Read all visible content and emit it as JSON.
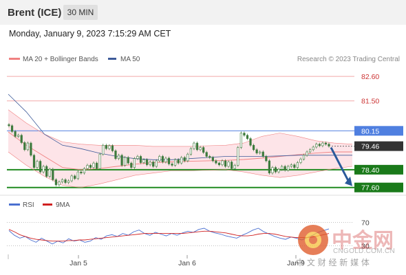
{
  "header": {
    "instrument": "Brent (ICE)",
    "timeframe": "30 MIN"
  },
  "datetime": "Monday, January 9, 2023 7:15:29 AM CET",
  "legend": {
    "bb_label": "MA 20 + Bollinger Bands",
    "ma50_label": "MA 50",
    "source": "Research © 2023 Trading Central",
    "rsi_label": "RSI",
    "rsi_ma_label": "9MA"
  },
  "colors": {
    "bollinger": "#f08080",
    "bollinger_fill": "#fde4e8",
    "ma50": "#3d5a99",
    "candle": "#3d7a3d",
    "support": "#1f8a1f",
    "resistance": "#4f7fe0",
    "pivot": "#333333",
    "arrow": "#2a5a9a",
    "rsi": "#4a6fd0",
    "rsi_ma": "#d02020"
  },
  "watermark": {
    "cn_title": "中金网",
    "url": "CNGOLD.COM.CN",
    "cn_sub": "中 文 财 经 新 媒 体"
  },
  "chart_data": [
    {
      "type": "line",
      "title": "Brent (ICE) 30 MIN",
      "x_tick_labels": [
        "Jan 5",
        "Jan 6",
        "Jan 9"
      ],
      "ylim": [
        77.25,
        83.1
      ],
      "series": [
        {
          "name": "Price",
          "values": [
            80.38,
            80.12,
            79.9,
            79.95,
            79.62,
            79.3,
            79.6,
            79.05,
            78.5,
            78.78,
            78.3,
            78.55,
            78.1,
            78.42,
            77.95,
            77.72,
            77.85,
            77.95,
            77.82,
            77.9,
            78.12,
            78.0,
            78.3,
            78.25,
            78.45,
            78.6,
            78.5,
            78.7,
            78.45,
            79.1,
            79.5,
            79.35,
            79.48,
            79.25,
            78.9,
            79.05,
            78.6,
            78.95,
            78.7,
            78.5,
            78.9,
            79.0,
            78.72,
            78.85,
            78.62,
            78.75,
            78.55,
            78.8,
            79.0,
            78.75,
            78.92,
            78.66,
            78.6,
            78.85,
            78.7,
            78.95,
            78.8,
            79.1,
            79.35,
            79.6,
            79.3,
            79.4,
            79.18,
            79.0,
            78.95,
            78.8,
            78.7,
            78.62,
            78.8,
            78.55,
            78.75,
            78.45,
            78.6,
            79.4,
            80.05,
            79.95,
            79.8,
            79.5,
            79.3,
            79.15,
            79.2,
            79.0,
            78.8,
            78.25,
            78.5,
            78.3,
            78.42,
            78.55,
            78.38,
            78.55,
            78.62,
            78.5,
            78.72,
            78.88,
            79.05,
            79.2,
            79.3,
            79.42,
            79.55,
            79.48,
            79.6,
            79.55,
            79.46
          ]
        },
        {
          "name": "MA 20",
          "values": [
            80.1,
            79.5,
            79.0,
            78.5,
            78.4,
            78.45,
            78.55,
            78.65,
            78.72,
            78.75,
            78.78,
            78.8,
            78.82,
            78.86,
            78.92,
            79.0,
            79.08,
            79.15,
            79.2,
            79.2
          ]
        },
        {
          "name": "MA 50",
          "values": [
            81.8,
            81.0,
            80.0,
            79.5,
            79.35,
            79.15,
            79.0,
            78.9,
            78.85,
            78.85,
            78.9,
            78.95,
            79.0,
            79.0,
            79.0,
            79.02,
            79.05,
            79.05,
            79.05,
            79.05
          ]
        },
        {
          "name": "Bollinger Upper",
          "values": [
            81.1,
            80.5,
            80.0,
            79.65,
            79.55,
            79.5,
            79.5,
            79.5,
            79.45,
            79.45,
            79.45,
            79.48,
            79.5,
            79.6,
            79.9,
            80.05,
            79.9,
            79.7,
            79.6,
            79.55
          ]
        },
        {
          "name": "Bollinger Lower",
          "values": [
            79.2,
            78.6,
            78.1,
            77.7,
            77.6,
            77.75,
            77.95,
            78.15,
            78.25,
            78.35,
            78.35,
            78.38,
            78.4,
            78.3,
            78.15,
            78.05,
            78.15,
            78.3,
            78.45,
            78.55
          ]
        }
      ],
      "levels": [
        {
          "value": 82.6,
          "label": "82.60",
          "kind": "resistance-2"
        },
        {
          "value": 81.5,
          "label": "81.50",
          "kind": "resistance-1"
        },
        {
          "value": 80.15,
          "label": "80.15",
          "kind": "pivot-line"
        },
        {
          "value": 79.46,
          "label": "79.46",
          "kind": "last-price"
        },
        {
          "value": 78.4,
          "label": "78.40",
          "kind": "support-1"
        },
        {
          "value": 77.6,
          "label": "77.60",
          "kind": "support-2"
        }
      ],
      "forecast_arrow": {
        "from": 79.46,
        "to": 77.6,
        "direction": "down"
      },
      "legend_position": "top-left",
      "grid": false
    },
    {
      "type": "line",
      "title": "RSI",
      "ylim": [
        20,
        80
      ],
      "levels": [
        {
          "value": 70,
          "label": "70"
        },
        {
          "value": 30,
          "label": "30"
        }
      ],
      "series": [
        {
          "name": "RSI",
          "values": [
            56,
            48,
            43,
            46,
            40,
            36,
            43,
            38,
            33,
            38,
            35,
            42,
            38,
            40,
            36,
            38,
            44,
            41,
            47,
            49,
            46,
            51,
            48,
            54,
            57,
            51,
            48,
            53,
            50,
            47,
            51,
            48,
            52,
            55,
            53,
            58,
            60,
            55,
            52,
            50,
            47,
            45,
            43,
            48,
            52,
            57,
            60,
            54,
            50,
            46,
            43,
            41,
            45,
            43,
            40,
            44,
            48,
            53,
            56,
            59
          ]
        },
        {
          "name": "9MA",
          "values": [
            58,
            54,
            49,
            46,
            43,
            41,
            40,
            39,
            38,
            38,
            38,
            39,
            39,
            40,
            40,
            41,
            42,
            43,
            44,
            45,
            46,
            47,
            48,
            49,
            50,
            51,
            51,
            51,
            51,
            51,
            51,
            51,
            51,
            52,
            53,
            54,
            55,
            55,
            54,
            53,
            52,
            50,
            48,
            47,
            47,
            48,
            50,
            51,
            51,
            50,
            48,
            46,
            45,
            44,
            44,
            44,
            45,
            47,
            49,
            51
          ]
        }
      ]
    }
  ]
}
